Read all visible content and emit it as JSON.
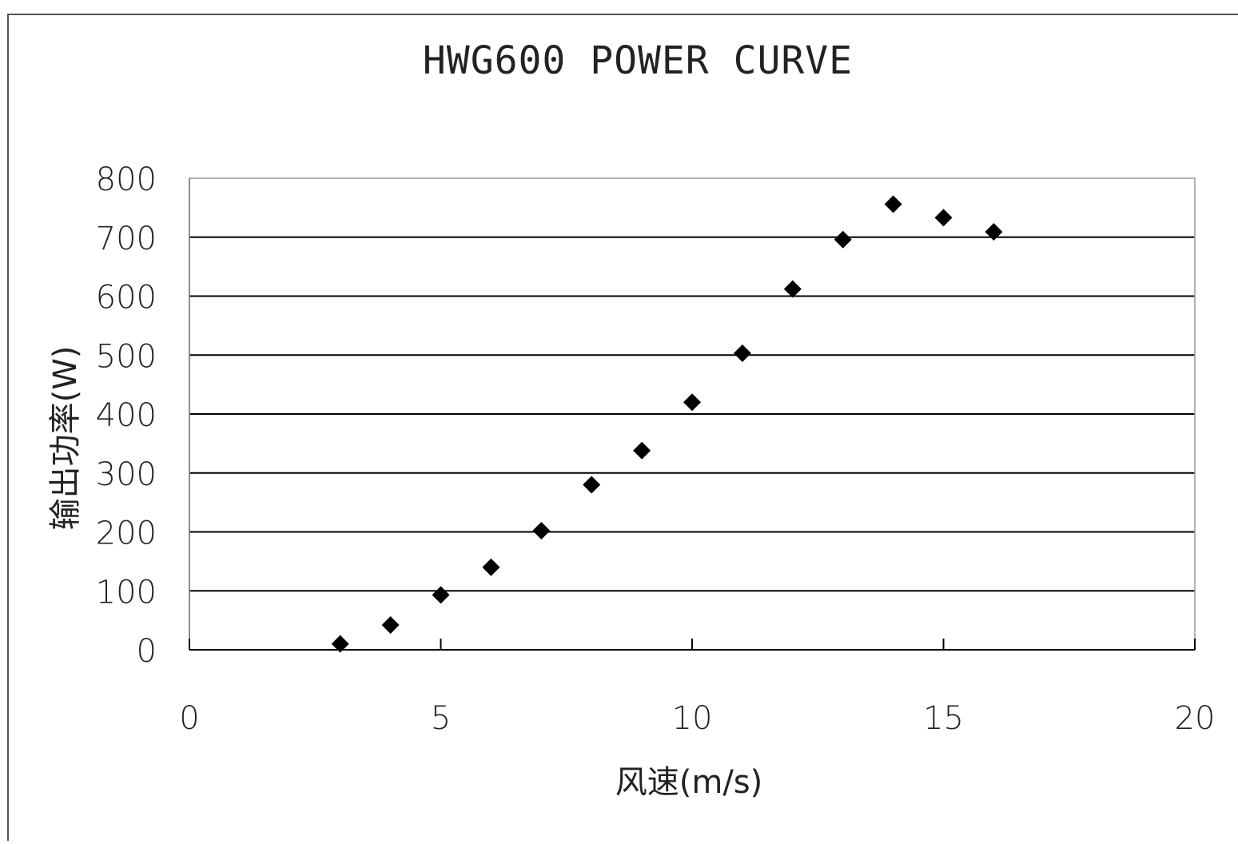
{
  "chart_data": {
    "type": "scatter",
    "title": "HWG600 POWER CURVE",
    "xlabel": "风速(m/s)",
    "ylabel": "输出功率(W)",
    "xlim": [
      0,
      20
    ],
    "ylim": [
      0,
      800
    ],
    "x_ticks": [
      0,
      5,
      10,
      15,
      20
    ],
    "y_ticks": [
      0,
      100,
      200,
      300,
      400,
      500,
      600,
      700,
      800
    ],
    "grid": "horizontal",
    "legend": "none",
    "marker": "diamond",
    "marker_color": "#000000",
    "series": [
      {
        "x": [
          3,
          4,
          5,
          6,
          7,
          8,
          9,
          10,
          11,
          12,
          13,
          14,
          15,
          16
        ],
        "y": [
          10,
          42,
          93,
          140,
          202,
          280,
          338,
          420,
          503,
          612,
          696,
          756,
          733,
          709
        ]
      }
    ]
  }
}
